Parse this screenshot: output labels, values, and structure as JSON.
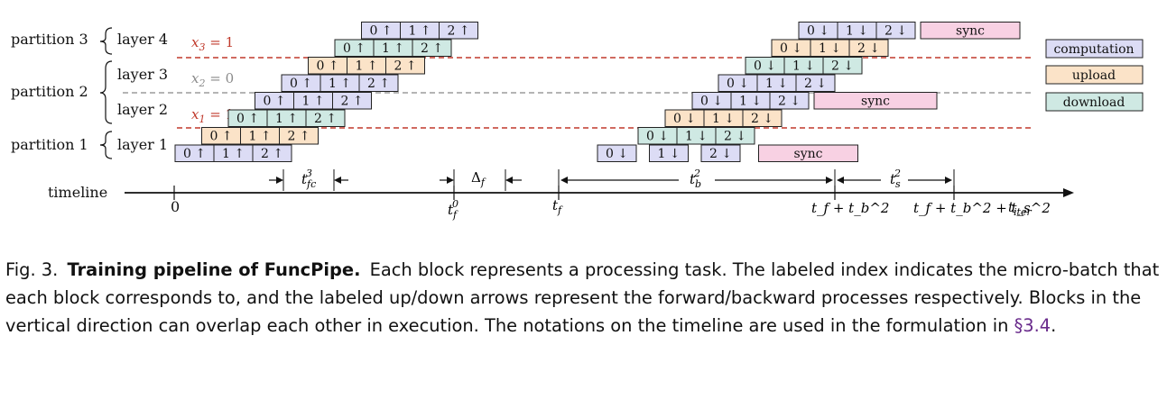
{
  "partitions": [
    {
      "label": "partition 3",
      "id": "p3"
    },
    {
      "label": "partition 2",
      "id": "p2"
    },
    {
      "label": "partition 1",
      "id": "p1"
    }
  ],
  "layers": [
    "layer 4",
    "layer 3",
    "layer 2",
    "layer 1"
  ],
  "decisions": [
    {
      "text": "x",
      "sub": "3",
      "rest": " = 1",
      "color": "#c0392b"
    },
    {
      "text": "x",
      "sub": "2",
      "rest": " = 0",
      "color": "#8a8a8a"
    },
    {
      "text": "x",
      "sub": "1",
      "rest": " = 1",
      "color": "#c0392b"
    }
  ],
  "legend": [
    {
      "label": "computation",
      "color": "#dcdcf5"
    },
    {
      "label": "upload",
      "color": "#fbe3c8"
    },
    {
      "label": "download",
      "color": "#cfe9e3"
    }
  ],
  "colors": {
    "computation": "#dcdcf5",
    "upload": "#fbe3c8",
    "download": "#cfe9e3",
    "sync": "#f8d1e3",
    "red_dash": "#c0392b",
    "gray_dash": "#888888"
  },
  "forward_rows": [
    {
      "row": 0,
      "items": [
        {
          "kind": "computation",
          "text": "0 ↑"
        },
        {
          "kind": "computation",
          "text": "1 ↑"
        },
        {
          "kind": "computation",
          "text": "2 ↑"
        }
      ]
    },
    {
      "row": 1,
      "items": [
        {
          "kind": "upload",
          "text": "0 ↑"
        },
        {
          "kind": "upload",
          "text": "1 ↑"
        },
        {
          "kind": "upload",
          "text": "2 ↑"
        }
      ]
    },
    {
      "row": 2,
      "items": [
        {
          "kind": "download",
          "text": "0 ↑"
        },
        {
          "kind": "download",
          "text": "1 ↑"
        },
        {
          "kind": "download",
          "text": "2 ↑"
        }
      ]
    },
    {
      "row": 3,
      "items": [
        {
          "kind": "computation",
          "text": "0 ↑"
        },
        {
          "kind": "computation",
          "text": "1 ↑"
        },
        {
          "kind": "computation",
          "text": "2 ↑"
        }
      ]
    },
    {
      "row": 4,
      "items": [
        {
          "kind": "computation",
          "text": "0 ↑"
        },
        {
          "kind": "computation",
          "text": "1 ↑"
        },
        {
          "kind": "computation",
          "text": "2 ↑"
        }
      ]
    },
    {
      "row": 5,
      "items": [
        {
          "kind": "upload",
          "text": "0 ↑"
        },
        {
          "kind": "upload",
          "text": "1 ↑"
        },
        {
          "kind": "upload",
          "text": "2 ↑"
        }
      ]
    },
    {
      "row": 6,
      "items": [
        {
          "kind": "download",
          "text": "0 ↑"
        },
        {
          "kind": "download",
          "text": "1 ↑"
        },
        {
          "kind": "download",
          "text": "2 ↑"
        }
      ]
    },
    {
      "row": 7,
      "items": [
        {
          "kind": "computation",
          "text": "0 ↑"
        },
        {
          "kind": "computation",
          "text": "1 ↑"
        },
        {
          "kind": "computation",
          "text": "2 ↑"
        }
      ]
    }
  ],
  "backward_rows": [
    {
      "row": 7,
      "items": [
        {
          "kind": "computation",
          "text": "0 ↓"
        },
        {
          "kind": "computation",
          "text": "1 ↓"
        },
        {
          "kind": "computation",
          "text": "2 ↓"
        },
        {
          "kind": "sync",
          "text": "sync"
        }
      ]
    },
    {
      "row": 6,
      "items": [
        {
          "kind": "upload",
          "text": "0 ↓"
        },
        {
          "kind": "upload",
          "text": "1 ↓"
        },
        {
          "kind": "upload",
          "text": "2 ↓"
        }
      ]
    },
    {
      "row": 5,
      "items": [
        {
          "kind": "download",
          "text": "0 ↓"
        },
        {
          "kind": "download",
          "text": "1 ↓"
        },
        {
          "kind": "download",
          "text": "2 ↓"
        }
      ]
    },
    {
      "row": 4,
      "items": [
        {
          "kind": "computation",
          "text": "0 ↓"
        },
        {
          "kind": "computation",
          "text": "1 ↓"
        },
        {
          "kind": "computation",
          "text": "2 ↓"
        }
      ]
    },
    {
      "row": 3,
      "items": [
        {
          "kind": "computation",
          "text": "0 ↓"
        },
        {
          "kind": "computation",
          "text": "1 ↓"
        },
        {
          "kind": "computation",
          "text": "2 ↓"
        },
        {
          "kind": "sync",
          "text": "sync"
        }
      ]
    },
    {
      "row": 2,
      "items": [
        {
          "kind": "upload",
          "text": "0 ↓"
        },
        {
          "kind": "upload",
          "text": "1 ↓"
        },
        {
          "kind": "upload",
          "text": "2 ↓"
        }
      ]
    },
    {
      "row": 1,
      "items": [
        {
          "kind": "download",
          "text": "0 ↓"
        },
        {
          "kind": "download",
          "text": "1 ↓"
        },
        {
          "kind": "download",
          "text": "2 ↓"
        }
      ]
    },
    {
      "row": 0,
      "items": [
        {
          "kind": "computation",
          "text": "0 ↓"
        },
        {
          "kind": "computation",
          "text": "1 ↓"
        },
        {
          "kind": "computation",
          "text": "2 ↓"
        },
        {
          "kind": "sync",
          "text": "sync"
        }
      ]
    }
  ],
  "timeline": {
    "label": "timeline",
    "zero": "0",
    "t_f0": {
      "base": "t",
      "sup": "0",
      "sub": "f"
    },
    "t_f": {
      "base": "t",
      "sub": "f"
    },
    "t_f_plus_tb": "t_f + t_b^2",
    "t_f_plus_tb_ts": "t_f + t_b^2 + t_s^2",
    "t_iter": {
      "base": "t",
      "sub": "iter"
    },
    "spans": {
      "t3fc": {
        "base": "t",
        "sup": "3",
        "sub": "fc"
      },
      "delta_f": {
        "base": "Δ",
        "sub": "f"
      },
      "t2b": {
        "base": "t",
        "sup": "2",
        "sub": "b"
      },
      "t2s": {
        "base": "t",
        "sup": "2",
        "sub": "s"
      }
    }
  },
  "caption": {
    "fig": "Fig. 3.",
    "title": "Training pipeline of FuncPipe.",
    "body": "Each block represents a processing task. The labeled index indicates the micro-batch that each block corresponds to, and the labeled up/down arrows represent the forward/backward processes respectively. Blocks in the vertical direction can overlap each other in execution. The notations on the timeline are used in the formulation in ",
    "ref": "§3.4",
    "end": "."
  }
}
